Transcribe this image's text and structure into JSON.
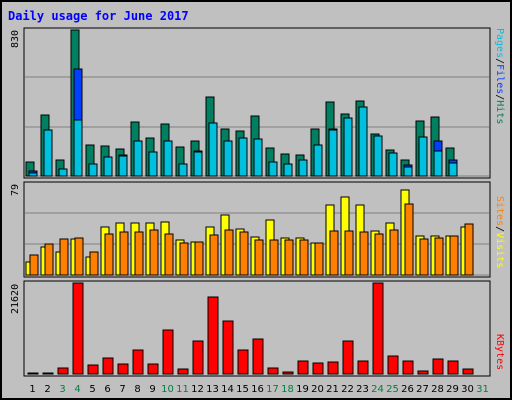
{
  "chart_data": [
    {
      "type": "bar",
      "title": "Daily usage for June 2017",
      "panel": "pages-files-hits",
      "ymax_label": "830",
      "ylim": [
        0,
        830
      ],
      "right_labels": [
        {
          "text": "Pages",
          "color": "#00c0e0"
        },
        {
          "text": "/",
          "color": "#000000"
        },
        {
          "text": "Files",
          "color": "#0040ff"
        },
        {
          "text": "/",
          "color": "#000000"
        },
        {
          "text": "Hits",
          "color": "#008060"
        }
      ],
      "categories": [
        "1",
        "2",
        "3",
        "4",
        "5",
        "6",
        "7",
        "8",
        "9",
        "10",
        "11",
        "12",
        "13",
        "14",
        "15",
        "16",
        "17",
        "18",
        "19",
        "20",
        "21",
        "22",
        "23",
        "24",
        "25",
        "26",
        "27",
        "28",
        "29",
        "30",
        "31"
      ],
      "series": [
        {
          "name": "Hits",
          "color": "#008060",
          "values": [
            82,
            345,
            93,
            830,
            174,
            173,
            154,
            308,
            218,
            297,
            167,
            201,
            448,
            265,
            256,
            342,
            158,
            124,
            117,
            270,
            420,
            350,
            429,
            240,
            145,
            92,
            314,
            336,
            162,
            null,
            null
          ]
        },
        {
          "name": "Files",
          "color": "#0040ff",
          "values": [
            26,
            120,
            40,
            606,
            65,
            110,
            120,
            150,
            120,
            160,
            70,
            140,
            260,
            165,
            150,
            180,
            70,
            60,
            60,
            170,
            270,
            300,
            300,
            170,
            110,
            60,
            190,
            200,
            90,
            null,
            null
          ]
        },
        {
          "name": "Pages",
          "color": "#00c0e0",
          "values": [
            15,
            260,
            40,
            320,
            70,
            110,
            115,
            200,
            135,
            200,
            70,
            135,
            300,
            200,
            215,
            210,
            80,
            70,
            90,
            175,
            260,
            330,
            390,
            230,
            130,
            50,
            220,
            140,
            75,
            null,
            null
          ]
        }
      ]
    },
    {
      "type": "bar",
      "panel": "visits-sites",
      "ymax_label": "79",
      "ylim": [
        0,
        79
      ],
      "right_labels": [
        {
          "text": "Sites",
          "color": "#ff8000"
        },
        {
          "text": "/",
          "color": "#000000"
        },
        {
          "text": "Visits",
          "color": "#ffff00"
        }
      ],
      "categories": [
        "1",
        "2",
        "3",
        "4",
        "5",
        "6",
        "7",
        "8",
        "9",
        "10",
        "11",
        "12",
        "13",
        "14",
        "15",
        "16",
        "17",
        "18",
        "19",
        "20",
        "21",
        "22",
        "23",
        "24",
        "25",
        "26",
        "27",
        "28",
        "29",
        "30",
        "31"
      ],
      "series": [
        {
          "name": "Visits",
          "color": "#ffff00",
          "values": [
            11,
            24,
            20,
            31,
            16,
            42,
            45,
            45,
            45,
            46,
            30,
            29,
            42,
            52,
            40,
            33,
            48,
            32,
            32,
            28,
            61,
            68,
            61,
            38,
            45,
            74,
            34,
            34,
            34,
            42,
            null
          ]
        },
        {
          "name": "Sites",
          "color": "#ff8000",
          "values": [
            17,
            27,
            31,
            32,
            20,
            36,
            37,
            37,
            39,
            36,
            28,
            29,
            35,
            39,
            37,
            30,
            30,
            30,
            30,
            28,
            38,
            38,
            37,
            36,
            39,
            62,
            31,
            32,
            34,
            44,
            null
          ]
        }
      ]
    },
    {
      "type": "bar",
      "panel": "kbytes",
      "ymax_label": "21620",
      "ylim": [
        0,
        21620
      ],
      "right_labels": [
        {
          "text": "KBytes",
          "color": "#ff0000"
        }
      ],
      "categories": [
        "1",
        "2",
        "3",
        "4",
        "5",
        "6",
        "7",
        "8",
        "9",
        "10",
        "11",
        "12",
        "13",
        "14",
        "15",
        "16",
        "17",
        "18",
        "19",
        "20",
        "21",
        "22",
        "23",
        "24",
        "25",
        "26",
        "27",
        "28",
        "29",
        "30",
        "31"
      ],
      "series": [
        {
          "name": "KBytes",
          "color": "#ff0000",
          "values": [
            200,
            200,
            1500,
            21620,
            2100,
            3900,
            2400,
            5600,
            2400,
            10500,
            1100,
            7900,
            18300,
            12600,
            5600,
            8400,
            1400,
            500,
            3100,
            2600,
            2900,
            7900,
            3100,
            21620,
            4300,
            3000,
            800,
            3500,
            3100,
            1100,
            null
          ]
        }
      ]
    }
  ],
  "x_axis": {
    "labels": [
      "1",
      "2",
      "3",
      "4",
      "5",
      "6",
      "7",
      "8",
      "9",
      "10",
      "11",
      "12",
      "13",
      "14",
      "15",
      "16",
      "17",
      "18",
      "19",
      "20",
      "21",
      "22",
      "23",
      "24",
      "25",
      "26",
      "27",
      "28",
      "29",
      "30",
      "31"
    ],
    "weekend_days": [
      3,
      4,
      10,
      11,
      17,
      18,
      24,
      25,
      31
    ],
    "weekday_color": "#000000",
    "weekend_color": "#008040"
  },
  "colors": {
    "background": "#c0c0c0",
    "title": "#0000ff",
    "grid": "#808080",
    "bar_outline": "#000000"
  }
}
